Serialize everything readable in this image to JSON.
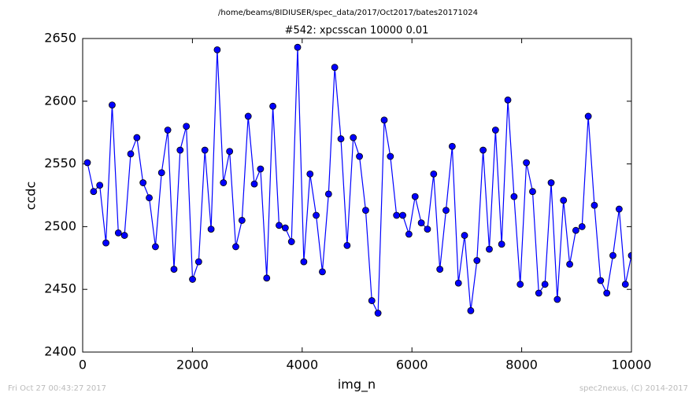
{
  "chart_data": {
    "type": "line",
    "suptitle": "/home/beams/8IDIUSER/spec_data/2017/Oct2017/bates20171024",
    "title": "#542: xpcsscan 10000 0.01",
    "x_label": "img_n",
    "y_label": "ccdc",
    "x": [
      86,
      199,
      311,
      424,
      537,
      650,
      762,
      875,
      988,
      1100,
      1213,
      1326,
      1438,
      1551,
      1664,
      1776,
      1889,
      2002,
      2114,
      2227,
      2340,
      2452,
      2565,
      2678,
      2790,
      2903,
      3016,
      3128,
      3241,
      3354,
      3466,
      3579,
      3692,
      3805,
      3917,
      4030,
      4143,
      4255,
      4368,
      4481,
      4593,
      4706,
      4819,
      4931,
      5044,
      5157,
      5269,
      5382,
      5495,
      5607,
      5720,
      5833,
      5945,
      6058,
      6171,
      6283,
      6396,
      6509,
      6621,
      6734,
      6847,
      6959,
      7072,
      7185,
      7297,
      7410,
      7523,
      7635,
      7748,
      7861,
      7973,
      8086,
      8199,
      8311,
      8424,
      8537,
      8649,
      8762,
      8875,
      8987,
      9100,
      9213,
      9325,
      9438,
      9551,
      9663,
      9776,
      9889,
      10000
    ],
    "series": [
      {
        "color": "#0000ff",
        "values": [
          2551,
          2528,
          2533,
          2487,
          2597,
          2495,
          2493,
          2558,
          2571,
          2535,
          2523,
          2484,
          2543,
          2577,
          2466,
          2561,
          2580,
          2458,
          2472,
          2561,
          2498,
          2641,
          2535,
          2560,
          2484,
          2505,
          2588,
          2534,
          2546,
          2459,
          2596,
          2501,
          2499,
          2488,
          2643,
          2472,
          2542,
          2509,
          2464,
          2526,
          2627,
          2570,
          2485,
          2571,
          2556,
          2513,
          2441,
          2431,
          2585,
          2556,
          2509,
          2509,
          2494,
          2524,
          2503,
          2498,
          2542,
          2466,
          2513,
          2564,
          2455,
          2493,
          2433,
          2473,
          2561,
          2482,
          2577,
          2486,
          2601,
          2524,
          2454,
          2551,
          2528,
          2447,
          2454,
          2535,
          2442,
          2521,
          2470,
          2497,
          2500,
          2588,
          2517,
          2457,
          2447,
          2477,
          2514,
          2454,
          2477
        ]
      }
    ],
    "xlim": [
      0,
      10000
    ],
    "xticks": [
      0,
      2000,
      4000,
      6000,
      8000,
      10000
    ],
    "ylim": [
      2400,
      2650
    ],
    "yticks": [
      2400,
      2450,
      2500,
      2550,
      2600,
      2650
    ]
  },
  "footer": {
    "left": "Fri Oct 27 00:43:27 2017",
    "right": "spec2nexus, (C) 2014-2017"
  }
}
